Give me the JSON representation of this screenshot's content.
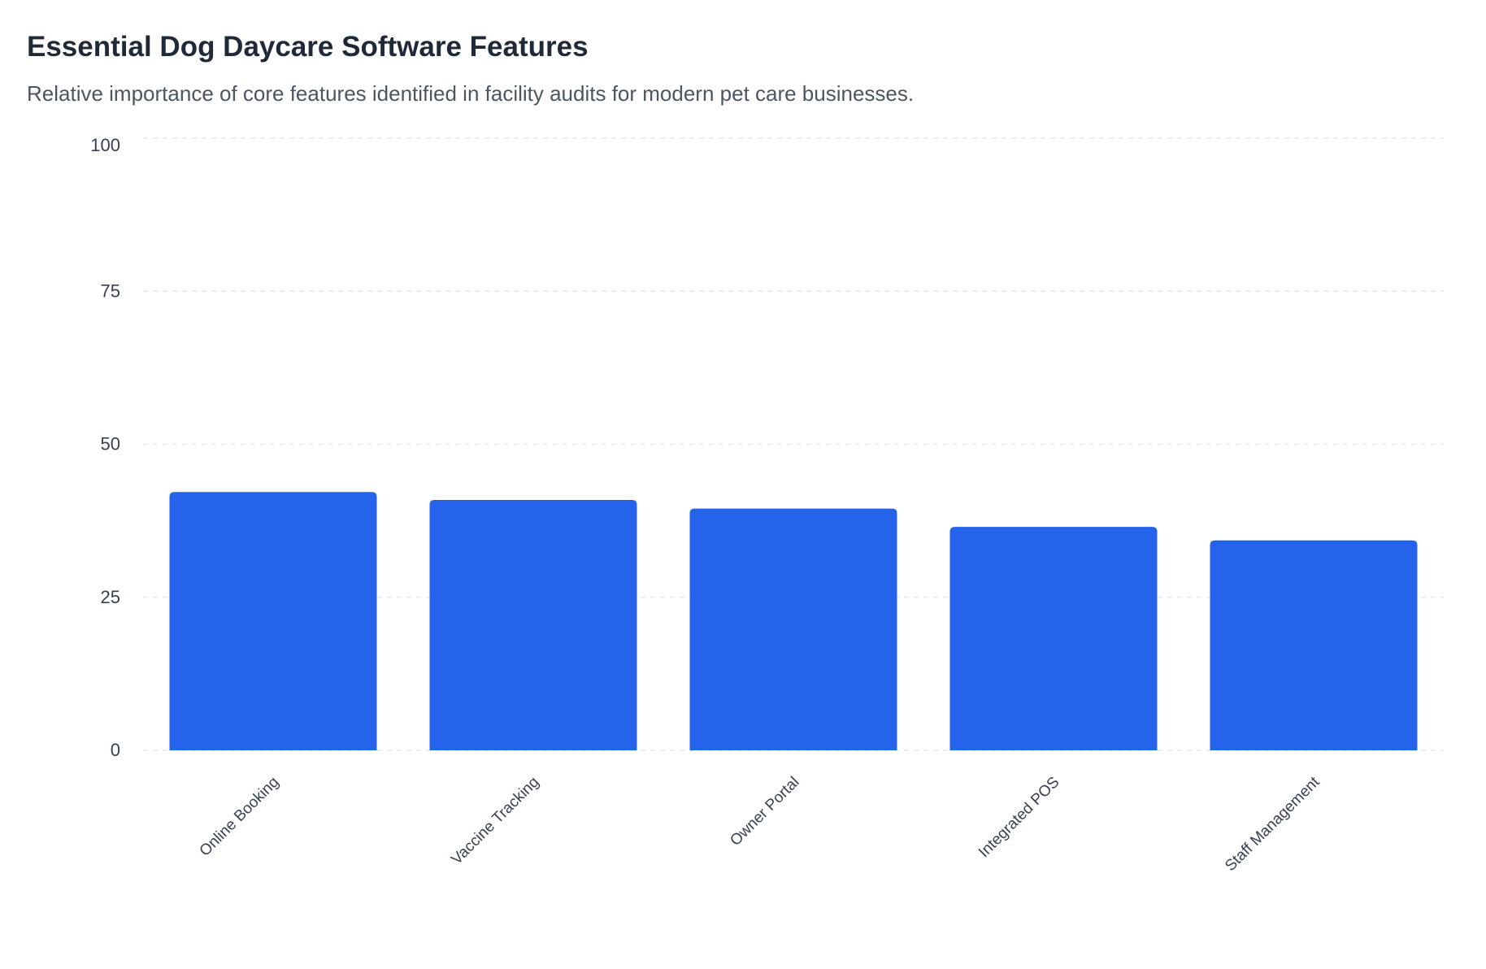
{
  "title": "Essential Dog Daycare Software Features",
  "subtitle": "Relative importance of core features identified in facility audits for modern pet care businesses.",
  "chart_data": {
    "type": "bar",
    "title": "Essential Dog Daycare Software Features",
    "subtitle": "Relative importance of core features identified in facility audits for modern pet care businesses.",
    "categories": [
      "Online Booking",
      "Vaccine Tracking",
      "Owner Portal",
      "Integrated POS",
      "Staff Management"
    ],
    "values": [
      42.2,
      40.9,
      39.5,
      36.5,
      34.3
    ],
    "xlabel": "",
    "ylabel": "",
    "ylim": [
      0,
      100
    ],
    "yticks": [
      0,
      25,
      50,
      75,
      100
    ],
    "grid": true,
    "legend": "none",
    "bar_color": "#2563eb"
  }
}
